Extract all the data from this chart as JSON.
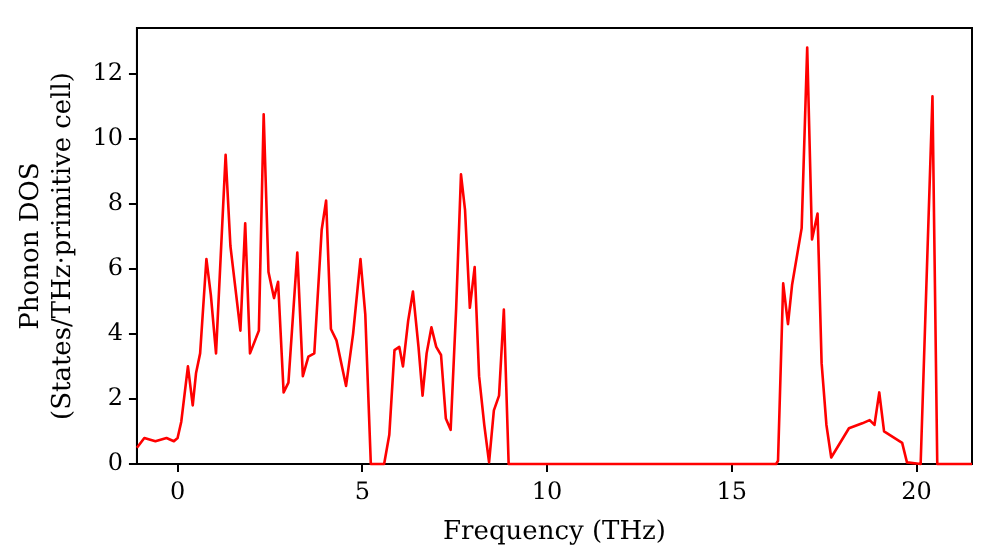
{
  "chart_data": {
    "type": "line",
    "xlabel": "Frequency (THz)",
    "ylabel": "Phonon DOS\n(States/THz·primitive cell)",
    "x": [
      -1.1,
      -0.9,
      -0.6,
      -0.3,
      -0.1,
      0.0,
      0.1,
      0.28,
      0.41,
      0.5,
      0.61,
      0.78,
      0.9,
      1.04,
      1.3,
      1.43,
      1.7,
      1.83,
      1.96,
      2.2,
      2.33,
      2.46,
      2.61,
      2.72,
      2.87,
      3.0,
      3.24,
      3.39,
      3.54,
      3.7,
      3.9,
      4.02,
      4.15,
      4.3,
      4.56,
      4.75,
      4.95,
      5.08,
      5.23,
      5.59,
      5.73,
      5.87,
      6.0,
      6.1,
      6.24,
      6.37,
      6.52,
      6.63,
      6.74,
      6.87,
      7.0,
      7.13,
      7.26,
      7.39,
      7.54,
      7.67,
      7.78,
      7.91,
      8.04,
      8.16,
      8.3,
      8.43,
      8.56,
      8.7,
      8.83,
      8.96,
      12.0,
      16.2,
      16.25,
      16.39,
      16.52,
      16.63,
      16.89,
      17.04,
      17.17,
      17.32,
      17.43,
      17.56,
      17.69,
      18.17,
      18.53,
      18.73,
      18.86,
      18.99,
      19.12,
      19.61,
      19.74,
      20.11,
      20.43,
      20.56,
      21.5
    ],
    "series": [
      {
        "color": "#ff0000",
        "values": [
          0.5,
          0.8,
          0.7,
          0.8,
          0.7,
          0.8,
          1.3,
          3.0,
          1.8,
          2.8,
          3.4,
          6.3,
          5.2,
          3.4,
          9.5,
          6.7,
          4.1,
          7.4,
          3.4,
          4.1,
          10.75,
          5.9,
          5.1,
          5.6,
          2.2,
          2.5,
          6.5,
          2.7,
          3.3,
          3.4,
          7.2,
          8.1,
          4.15,
          3.8,
          2.4,
          4.0,
          6.3,
          4.6,
          0,
          0,
          0.9,
          3.5,
          3.6,
          3.0,
          4.4,
          5.3,
          3.6,
          2.1,
          3.4,
          4.2,
          3.6,
          3.35,
          1.4,
          1.05,
          4.8,
          8.9,
          7.8,
          4.8,
          6.05,
          2.7,
          1.2,
          0.05,
          1.65,
          2.1,
          4.75,
          0,
          0,
          0,
          0.1,
          5.55,
          4.3,
          5.5,
          7.25,
          12.8,
          6.9,
          7.7,
          3.1,
          1.2,
          0.2,
          1.1,
          1.25,
          1.35,
          1.2,
          2.2,
          1.0,
          0.65,
          0.05,
          0,
          11.3,
          0,
          0
        ]
      }
    ],
    "xlim": [
      -1.1,
      21.5
    ],
    "ylim": [
      0,
      13.4
    ],
    "xticks": [
      0,
      5,
      10,
      15,
      20
    ],
    "yticks": [
      0,
      2,
      4,
      6,
      8,
      10,
      12
    ],
    "grid": false,
    "legend": false,
    "marker": "none",
    "line_style": "solid"
  }
}
